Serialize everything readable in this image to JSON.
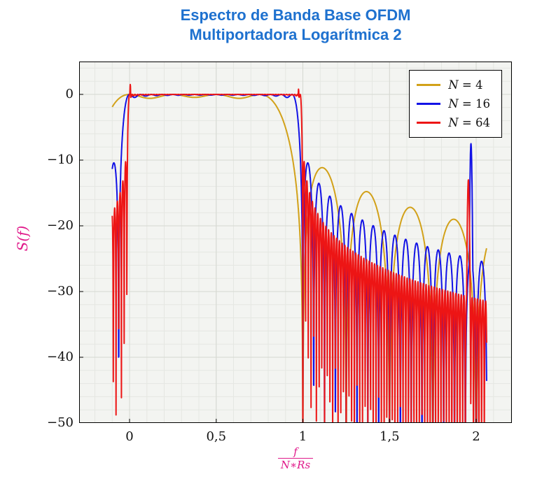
{
  "chart": {
    "title_line1": "Espectro de Banda Base OFDM",
    "title_line2": "Multiportadora Logarítmica 2",
    "title_color": "#1e71cf",
    "ylabel": "S(f)",
    "xlabel_numerator": "f",
    "xlabel_denominator": "N∗Rs",
    "label_color": "#e0198a"
  },
  "chart_data": {
    "type": "line",
    "title": "Espectro de Banda Base OFDM Multiportadora Logarítmica 2",
    "xlabel": "f/(N*Rs)",
    "ylabel": "S(f) [dB]",
    "xlim": [
      -0.291,
      2.206
    ],
    "ylim": [
      -50,
      5
    ],
    "xticks": [
      {
        "value": 0,
        "label": "0"
      },
      {
        "value": 0.5,
        "label": "0,5"
      },
      {
        "value": 1,
        "label": "1"
      },
      {
        "value": 1.5,
        "label": "1,5"
      },
      {
        "value": 2,
        "label": "2"
      }
    ],
    "yticks": [
      {
        "value": 0,
        "label": "0"
      },
      {
        "value": -10,
        "label": "−10"
      },
      {
        "value": -20,
        "label": "−20"
      },
      {
        "value": -30,
        "label": "−30"
      },
      {
        "value": -40,
        "label": "−40"
      },
      {
        "value": -50,
        "label": "−50"
      }
    ],
    "minor_x_step": 0.1,
    "minor_y_step": 2,
    "grid": true,
    "legend_position": "top-right",
    "x_start": -0.1,
    "x_end": 2.06,
    "x_step": 0.001,
    "formula": "S_dB(x) = 10*log10( sum_{k=0}^{N-1} sinc^2(N*x - k) ), sinc(u)=sin(pi*u)/(pi*u), x = f/(N*Rs); flat 0 dB band for 0<=x<=1, sidelobes decaying to about -20..-35 dB toward x=2, first sidelobe about -11 dB after x=1, left edge values: N=4 about -2 dB, N=16 about -11.5 dB, N=64 about -18.5 dB at x=-0.1",
    "series": [
      {
        "label": "N = 4",
        "label_var": "N",
        "label_val": "4",
        "N": 4,
        "color": "#d2a119"
      },
      {
        "label": "N = 16",
        "label_var": "N",
        "label_val": "16",
        "N": 16,
        "color": "#1212e6"
      },
      {
        "label": "N = 64",
        "label_var": "N",
        "label_val": "64",
        "N": 64,
        "color": "#ed1515"
      }
    ],
    "spikes": [
      {
        "series_index": 2,
        "x": 0.004,
        "peak_db": 1.5,
        "width": 0.004
      },
      {
        "series_index": 2,
        "x": 0.975,
        "peak_db": 0.8,
        "width": 0.004
      },
      {
        "series_index": 1,
        "x": 1.97,
        "peak_db": -7.5,
        "width": 0.005
      },
      {
        "series_index": 2,
        "x": 1.955,
        "peak_db": -13,
        "width": 0.005
      }
    ],
    "colors": {
      "plot_background": "#f3f4f1",
      "major_grid": "#d5d8d1",
      "minor_grid": "#e5e7e2",
      "axis_box": "#000000"
    }
  }
}
